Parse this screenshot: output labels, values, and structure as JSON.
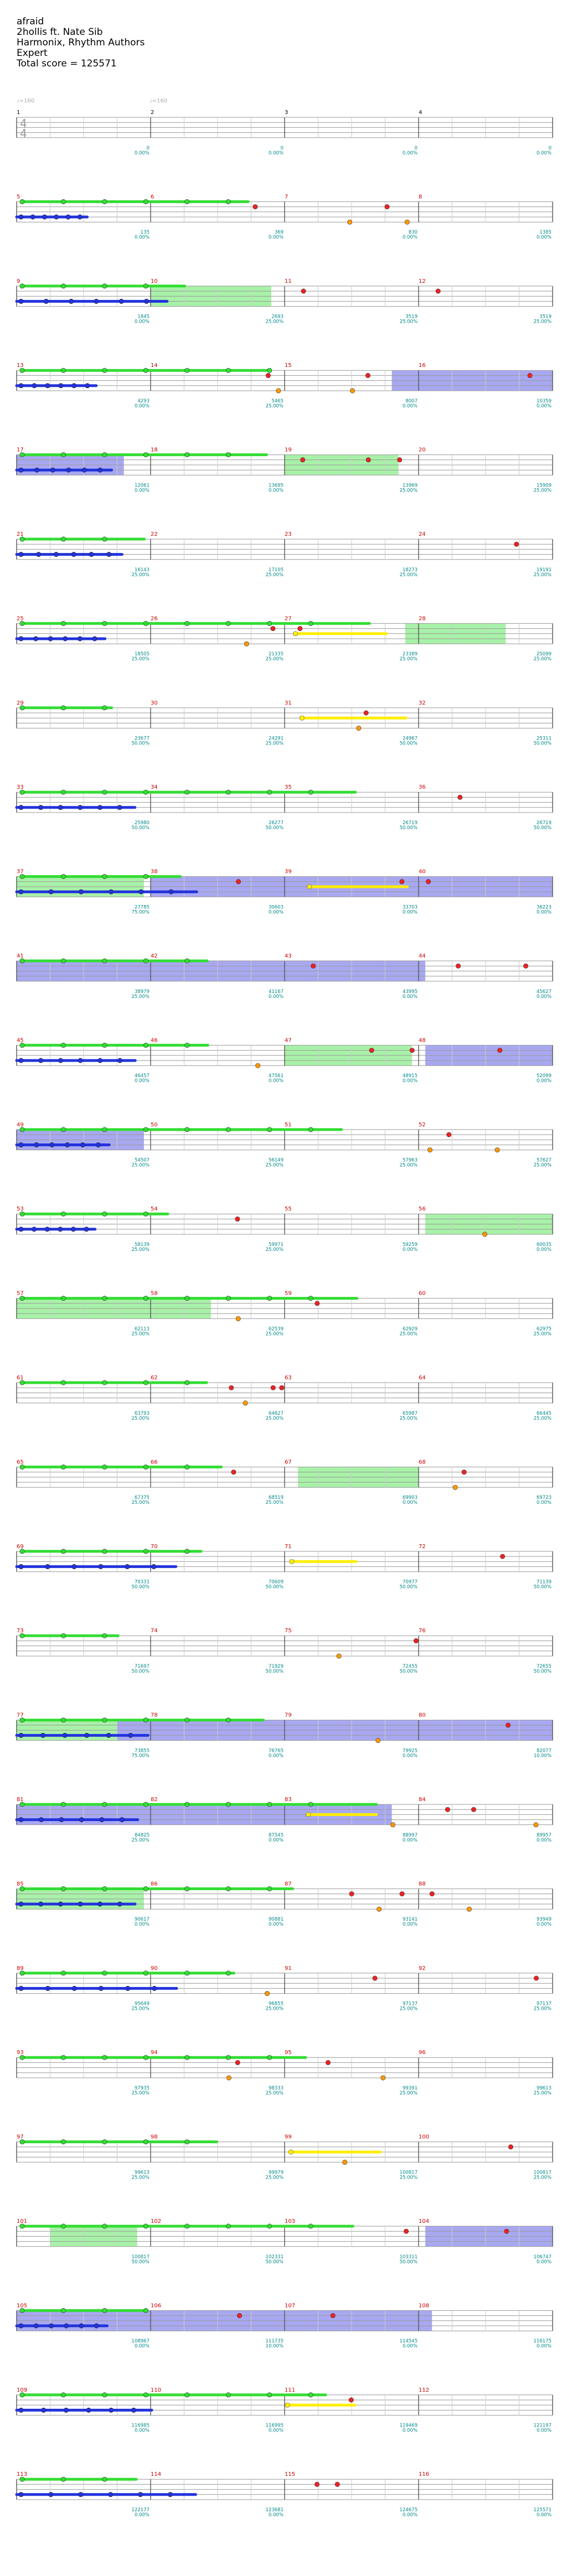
{
  "song": {
    "title": "afraid",
    "artist": "2hollis ft. Nate Sib",
    "charter": "Harmonix, Rhythm Authors",
    "difficulty": "Expert",
    "total_score_label": "Total score = 125571"
  },
  "tempo_markers": [
    "♩=160",
    "♩=160"
  ],
  "time_signature": {
    "top": "4",
    "bottom": "4"
  },
  "colors": {
    "green": "#33dd33",
    "red": "#ee2222",
    "yellow": "#ffee00",
    "blue": "#2233dd",
    "orange": "#ff9900",
    "starpower_green": "#99ee99",
    "overdrive_blue": "#9999ee",
    "measure_number": "#cc0000",
    "score_text": "#008888",
    "staff_line": "#999999"
  },
  "rows": [
    {
      "measures": [
        "1",
        "2",
        "3",
        "4"
      ],
      "scores": [
        "0",
        "0",
        "0",
        "0"
      ],
      "pcts": [
        "0.00%",
        "0.00%",
        "0.00%",
        "0.00%"
      ],
      "marks": [
        "",
        "",
        "",
        ""
      ],
      "end_score": "0",
      "end_pct": "0.00%"
    },
    {
      "measures": [
        "5",
        "6",
        "7",
        "8"
      ],
      "scores": [
        "135",
        "369",
        "830",
        "1385"
      ],
      "pcts": [
        "0.00%",
        "0.00%",
        "0.00%",
        "0.00%"
      ],
      "marks": [
        "135",
        "369",
        "830",
        "1385"
      ],
      "end_score": "",
      "end_pct": ""
    },
    {
      "measures": [
        "9",
        "10",
        "11",
        "12"
      ],
      "scores": [
        "1845",
        "2693",
        "3519",
        "3519"
      ],
      "pcts": [
        "0.00%",
        "25.00%",
        "25.00%",
        "25.00%"
      ],
      "marks": [
        "",
        "",
        "",
        ""
      ],
      "end_score": "",
      "end_pct": ""
    },
    {
      "measures": [
        "13",
        "14",
        "15",
        "16"
      ],
      "scores": [
        "4293",
        "5465",
        "8007",
        "10359"
      ],
      "pcts": [
        "0.00%",
        "25.00%",
        "0.00%",
        "0.00%"
      ],
      "marks": [
        "",
        "",
        "",
        ""
      ],
      "end_score": "",
      "end_pct": ""
    },
    {
      "measures": [
        "17",
        "18",
        "19",
        "20"
      ],
      "scores": [
        "12061",
        "13695",
        "13969",
        "15909"
      ],
      "pcts": [
        "0.00%",
        "0.00%",
        "25.00%",
        "25.00%"
      ],
      "marks": [
        "",
        "",
        "",
        ""
      ],
      "end_score": "",
      "end_pct": ""
    },
    {
      "measures": [
        "21",
        "22",
        "23",
        "24"
      ],
      "scores": [
        "16143",
        "17105",
        "18273",
        "19191"
      ],
      "pcts": [
        "25.00%",
        "25.00%",
        "25.00%",
        "25.00%"
      ],
      "marks": [
        "",
        "",
        "",
        ""
      ],
      "end_score": "",
      "end_pct": ""
    },
    {
      "measures": [
        "25",
        "26",
        "27",
        "28"
      ],
      "scores": [
        "18505",
        "21335",
        "23389",
        "25099"
      ],
      "pcts": [
        "25.00%",
        "25.00%",
        "25.00%",
        "25.00%"
      ],
      "marks": [
        "",
        "",
        "",
        ""
      ],
      "end_score": "",
      "end_pct": ""
    },
    {
      "measures": [
        "29",
        "30",
        "31",
        "32"
      ],
      "scores": [
        "23677",
        "24291",
        "24967",
        "25311"
      ],
      "pcts": [
        "50.00%",
        "25.00%",
        "50.00%",
        "50.00%"
      ],
      "marks": [
        "",
        "",
        "",
        ""
      ],
      "end_score": "",
      "end_pct": ""
    },
    {
      "measures": [
        "33",
        "34",
        "35",
        "36"
      ],
      "scores": [
        "25980",
        "26277",
        "26719",
        "26719"
      ],
      "pcts": [
        "50.00%",
        "50.00%",
        "50.00%",
        "50.00%"
      ],
      "marks": [
        "",
        "",
        "",
        ""
      ],
      "end_score": "",
      "end_pct": ""
    },
    {
      "measures": [
        "37",
        "38",
        "39",
        "40"
      ],
      "scores": [
        "27785",
        "30603",
        "33703",
        "36223"
      ],
      "pcts": [
        "75.00%",
        "0.00%",
        "0.00%",
        "0.00%"
      ],
      "marks": [
        "",
        "",
        "",
        ""
      ],
      "end_score": "",
      "end_pct": ""
    },
    {
      "measures": [
        "41",
        "42",
        "43",
        "44"
      ],
      "scores": [
        "38979",
        "41167",
        "43995",
        "45627"
      ],
      "pcts": [
        "25.00%",
        "0.00%",
        "0.00%",
        "0.00%"
      ],
      "marks": [
        "",
        "",
        "",
        ""
      ],
      "end_score": "",
      "end_pct": ""
    },
    {
      "measures": [
        "45",
        "46",
        "47",
        "48"
      ],
      "scores": [
        "46457",
        "47561",
        "48915",
        "52099"
      ],
      "pcts": [
        "0.00%",
        "0.00%",
        "0.00%",
        "0.00%"
      ],
      "marks": [
        "",
        "",
        "",
        ""
      ],
      "end_score": "",
      "end_pct": ""
    },
    {
      "measures": [
        "49",
        "50",
        "51",
        "52"
      ],
      "scores": [
        "54507",
        "56149",
        "57963",
        "57627"
      ],
      "pcts": [
        "25.00%",
        "25.00%",
        "25.00%",
        "25.00%"
      ],
      "marks": [
        "",
        "",
        "",
        ""
      ],
      "end_score": "",
      "end_pct": ""
    },
    {
      "measures": [
        "53",
        "54",
        "55",
        "56"
      ],
      "scores": [
        "58139",
        "59971",
        "59259",
        "60035"
      ],
      "pcts": [
        "25.00%",
        "25.00%",
        "0.00%",
        "0.00%"
      ],
      "marks": [
        "",
        "",
        "",
        ""
      ],
      "end_score": "",
      "end_pct": ""
    },
    {
      "measures": [
        "57",
        "58",
        "59",
        "60"
      ],
      "scores": [
        "62113",
        "62539",
        "62929",
        "62975"
      ],
      "pcts": [
        "25.00%",
        "25.00%",
        "25.00%",
        "25.00%"
      ],
      "marks": [
        "",
        "",
        "",
        ""
      ],
      "end_score": "",
      "end_pct": ""
    },
    {
      "measures": [
        "61",
        "62",
        "63",
        "64"
      ],
      "scores": [
        "63793",
        "64627",
        "65987",
        "66445"
      ],
      "pcts": [
        "25.00%",
        "25.00%",
        "25.00%",
        "25.00%"
      ],
      "marks": [
        "",
        "",
        "",
        ""
      ],
      "end_score": "",
      "end_pct": ""
    },
    {
      "measures": [
        "65",
        "66",
        "67",
        "68"
      ],
      "scores": [
        "67375",
        "68519",
        "69903",
        "69723"
      ],
      "pcts": [
        "25.00%",
        "25.00%",
        "0.00%",
        "0.00%"
      ],
      "marks": [
        "",
        "",
        "",
        ""
      ],
      "end_score": "",
      "end_pct": ""
    },
    {
      "measures": [
        "69",
        "70",
        "71",
        "72"
      ],
      "scores": [
        "70331",
        "70609",
        "70977",
        "71139"
      ],
      "pcts": [
        "50.00%",
        "50.00%",
        "50.00%",
        "50.00%"
      ],
      "marks": [
        "",
        "",
        "",
        ""
      ],
      "end_score": "",
      "end_pct": ""
    },
    {
      "measures": [
        "73",
        "74",
        "75",
        "76"
      ],
      "scores": [
        "71697",
        "71929",
        "72455",
        "72655"
      ],
      "pcts": [
        "50.00%",
        "50.00%",
        "50.00%",
        "50.00%"
      ],
      "marks": [
        "",
        "",
        "",
        ""
      ],
      "end_score": "",
      "end_pct": ""
    },
    {
      "measures": [
        "77",
        "78",
        "79",
        "80"
      ],
      "scores": [
        "73855",
        "76765",
        "79925",
        "82077"
      ],
      "pcts": [
        "75.00%",
        "0.00%",
        "0.00%",
        "10.00%"
      ],
      "marks": [
        "",
        "",
        "",
        ""
      ],
      "end_score": "",
      "end_pct": ""
    },
    {
      "measures": [
        "81",
        "82",
        "83",
        "84"
      ],
      "scores": [
        "84825",
        "87545",
        "88997",
        "89957"
      ],
      "pcts": [
        "25.00%",
        "0.00%",
        "0.00%",
        "0.00%"
      ],
      "marks": [
        "",
        "",
        "",
        ""
      ],
      "end_score": "",
      "end_pct": ""
    },
    {
      "measures": [
        "85",
        "86",
        "87",
        "88"
      ],
      "scores": [
        "90617",
        "90881",
        "93141",
        "93949"
      ],
      "pcts": [
        "0.00%",
        "0.00%",
        "0.00%",
        "0.00%"
      ],
      "marks": [
        "",
        "",
        "",
        ""
      ],
      "end_score": "",
      "end_pct": ""
    },
    {
      "measures": [
        "89",
        "90",
        "91",
        "92"
      ],
      "scores": [
        "95649",
        "96855",
        "97137",
        "97137"
      ],
      "pcts": [
        "25.00%",
        "25.00%",
        "25.00%",
        "25.00%"
      ],
      "marks": [
        "",
        "",
        "",
        ""
      ],
      "end_score": "",
      "end_pct": ""
    },
    {
      "measures": [
        "93",
        "94",
        "95",
        "96"
      ],
      "scores": [
        "97935",
        "98333",
        "99391",
        "99613"
      ],
      "pcts": [
        "25.00%",
        "25.00%",
        "25.00%",
        "25.00%"
      ],
      "marks": [
        "",
        "",
        "",
        ""
      ],
      "end_score": "",
      "end_pct": ""
    },
    {
      "measures": [
        "97",
        "98",
        "99",
        "100"
      ],
      "scores": [
        "99613",
        "99979",
        "100817",
        "100817"
      ],
      "pcts": [
        "25.00%",
        "25.00%",
        "25.00%",
        "25.00%"
      ],
      "marks": [
        "",
        "",
        "",
        ""
      ],
      "end_score": "",
      "end_pct": ""
    },
    {
      "measures": [
        "101",
        "102",
        "103",
        "104"
      ],
      "scores": [
        "100817",
        "102331",
        "103311",
        "106747"
      ],
      "pcts": [
        "50.00%",
        "50.00%",
        "50.00%",
        "0.00%"
      ],
      "marks": [
        "",
        "",
        "",
        ""
      ],
      "end_score": "",
      "end_pct": ""
    },
    {
      "measures": [
        "105",
        "106",
        "107",
        "108"
      ],
      "scores": [
        "108967",
        "111735",
        "114545",
        "116175"
      ],
      "pcts": [
        "0.00%",
        "10.00%",
        "0.00%",
        "0.00%"
      ],
      "marks": [
        "",
        "",
        "",
        ""
      ],
      "end_score": "",
      "end_pct": ""
    },
    {
      "measures": [
        "109",
        "110",
        "111",
        "112"
      ],
      "scores": [
        "116985",
        "116995",
        "119469",
        "121197"
      ],
      "pcts": [
        "0.00%",
        "0.00%",
        "0.00%",
        "0.00%"
      ],
      "marks": [
        "",
        "",
        "",
        ""
      ],
      "end_score": "",
      "end_pct": ""
    },
    {
      "measures": [
        "113",
        "114",
        "115",
        "116"
      ],
      "scores": [
        "122177",
        "123681",
        "124675",
        "125571"
      ],
      "pcts": [
        "0.00%",
        "0.00%",
        "0.00%",
        "0.00%"
      ],
      "marks": [
        "",
        "",
        "",
        ""
      ],
      "end_score": "",
      "end_pct": ""
    }
  ]
}
